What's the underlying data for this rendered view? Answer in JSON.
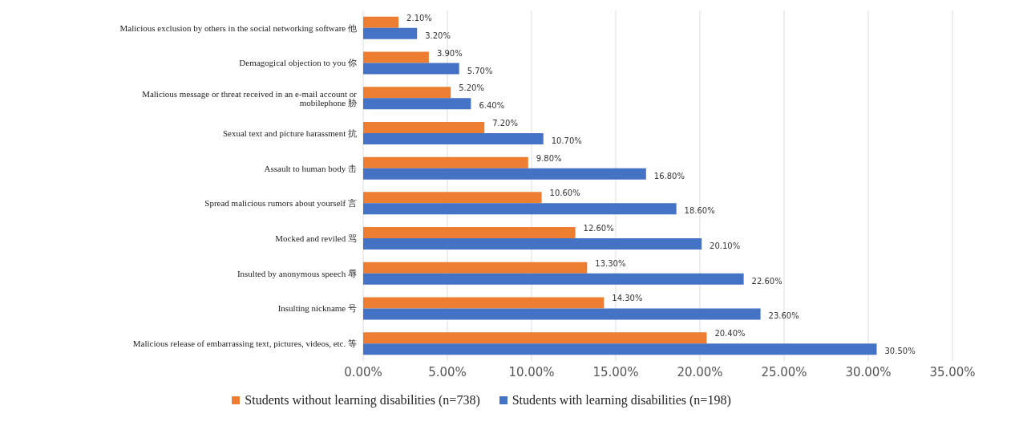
{
  "chart_data": {
    "type": "bar",
    "orientation": "horizontal",
    "categories": [
      "Malicious exclusion by others in the social networking software 他",
      "Demagogical objection to you 你",
      "Malicious message or threat received in an e-mail account or mobilephone 胁",
      "Sexual text and picture harassment 抗",
      "Assault to human body 击",
      "Spread malicious rumors about yourself 言",
      "Mocked and reviled 骂",
      "Insulted by anonymous speech 辱",
      "Insulting nickname 号",
      "Malicious release of embarrassing text, pictures, videos, etc. 等"
    ],
    "series": [
      {
        "name": "Students without learning disabilities (n=738)",
        "color": "#ed7d31",
        "values": [
          2.1,
          3.9,
          5.2,
          7.2,
          9.8,
          10.6,
          12.6,
          13.3,
          14.3,
          20.4
        ],
        "value_labels": [
          "2.10%",
          "3.90%",
          "5.20%",
          "7.20%",
          "9.80%",
          "10.60%",
          "12.60%",
          "13.30%",
          "14.30%",
          "20.40%"
        ]
      },
      {
        "name": "Students with learning disabilities (n=198)",
        "color": "#4472c4",
        "values": [
          3.2,
          5.7,
          6.4,
          10.7,
          16.8,
          18.6,
          20.1,
          22.6,
          23.6,
          30.5
        ],
        "value_labels": [
          "3.20%",
          "5.70%",
          "6.40%",
          "10.70%",
          "16.80%",
          "18.60%",
          "20.10%",
          "22.60%",
          "23.60%",
          "30.50%"
        ]
      }
    ],
    "xlim": [
      0,
      35
    ],
    "xticks": [
      {
        "value": 0,
        "label": "0.00%"
      },
      {
        "value": 5,
        "label": "5.00%"
      },
      {
        "value": 10,
        "label": "10.00%"
      },
      {
        "value": 15,
        "label": "15.00%"
      },
      {
        "value": 20,
        "label": "20.00%"
      },
      {
        "value": 25,
        "label": "25.00%"
      },
      {
        "value": 30,
        "label": "30.00%"
      },
      {
        "value": 35,
        "label": "35.00%"
      }
    ],
    "grid": "x",
    "legend": "bottom"
  }
}
